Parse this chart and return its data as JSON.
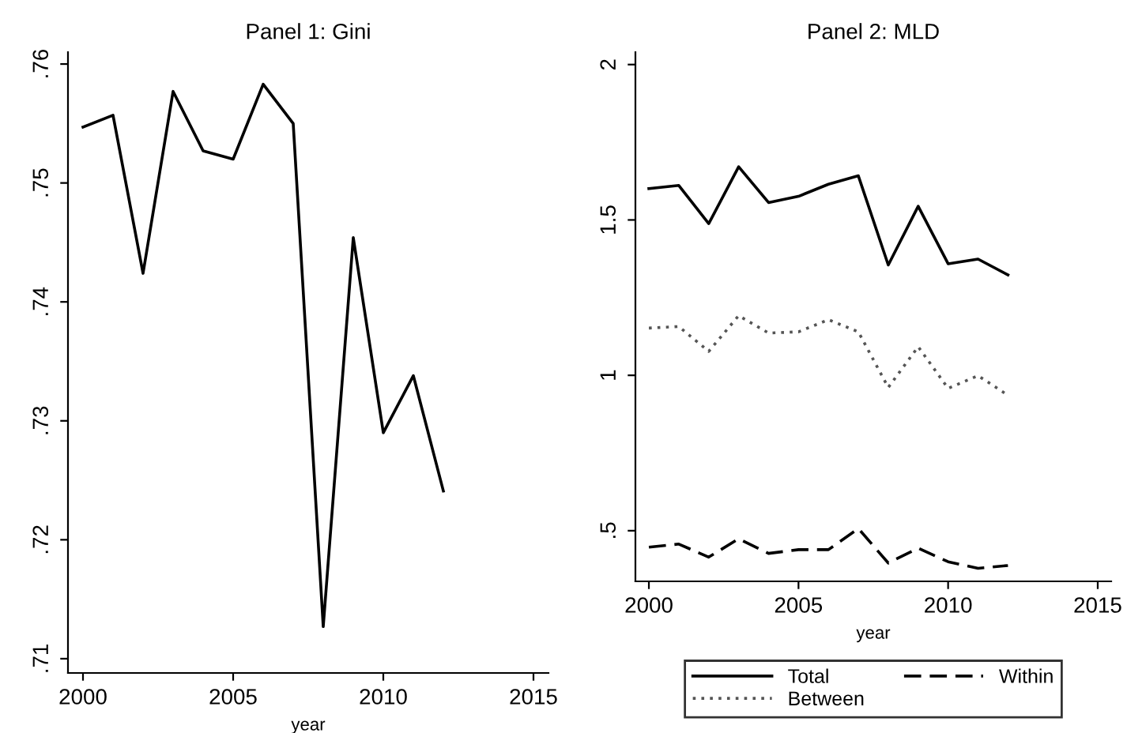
{
  "chart_data": [
    {
      "type": "line",
      "title": "Panel 1: Gini",
      "xlabel": "year",
      "x": [
        2000,
        2001,
        2002,
        2003,
        2004,
        2005,
        2006,
        2007,
        2008,
        2009,
        2010,
        2011,
        2012
      ],
      "series": [
        {
          "color": "#000000",
          "line_style": "solid",
          "values": [
            0.7547,
            0.7557,
            0.7424,
            0.7577,
            0.7527,
            0.752,
            0.7583,
            0.755,
            0.7127,
            0.7454,
            0.729,
            0.7338,
            0.7241
          ]
        }
      ],
      "xlim": [
        1999.5,
        2015.5
      ],
      "xticks": [
        2000,
        2005,
        2010,
        2015
      ],
      "ylim": [
        0.7088,
        0.761
      ],
      "yticks": [
        {
          "value": 0.71,
          "label": ".71"
        },
        {
          "value": 0.72,
          "label": ".72"
        },
        {
          "value": 0.73,
          "label": ".73"
        },
        {
          "value": 0.74,
          "label": ".74"
        },
        {
          "value": 0.75,
          "label": ".75"
        },
        {
          "value": 0.76,
          "label": ".76"
        }
      ],
      "grid": false,
      "legend": false
    },
    {
      "type": "line",
      "title": "Panel 2: MLD",
      "xlabel": "year",
      "x": [
        2000,
        2001,
        2002,
        2003,
        2004,
        2005,
        2006,
        2007,
        2008,
        2009,
        2010,
        2011,
        2012
      ],
      "series": [
        {
          "name": "Total",
          "color": "#000000",
          "line_style": "solid",
          "values": [
            1.601,
            1.611,
            1.488,
            1.671,
            1.556,
            1.576,
            1.615,
            1.642,
            1.355,
            1.544,
            1.359,
            1.374,
            1.323
          ]
        },
        {
          "name": "Within",
          "color": "#000000",
          "line_style": "dashed",
          "values": [
            0.447,
            0.457,
            0.415,
            0.474,
            0.427,
            0.439,
            0.439,
            0.507,
            0.396,
            0.444,
            0.4,
            0.379,
            0.388
          ]
        },
        {
          "name": "Between",
          "color": "#555555",
          "line_style": "dotted",
          "values": [
            1.152,
            1.157,
            1.077,
            1.192,
            1.136,
            1.14,
            1.179,
            1.14,
            0.961,
            1.092,
            0.958,
            0.999,
            0.936
          ]
        }
      ],
      "xlim": [
        1999.55,
        2015.45
      ],
      "xticks": [
        2000,
        2005,
        2010,
        2015
      ],
      "ylim": [
        0.337,
        2.04
      ],
      "yticks": [
        {
          "value": 0.5,
          "label": ".5"
        },
        1,
        1.5,
        2
      ],
      "grid": false,
      "legend": "bottom"
    }
  ]
}
